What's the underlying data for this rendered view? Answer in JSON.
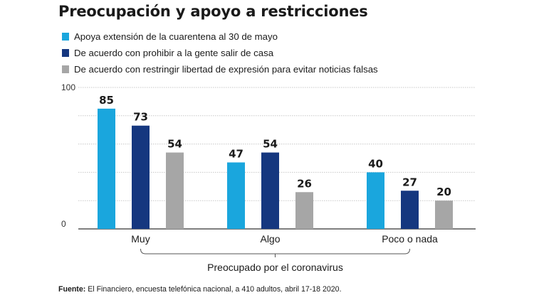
{
  "colors": {
    "series1": "#1aa6dd",
    "series2": "#15377f",
    "series3": "#a6a6a6",
    "grid": "#c8c8c8",
    "axis": "#333333"
  },
  "chart_data": {
    "type": "bar",
    "title": "Preocupación y apoyo a restricciones",
    "categories": [
      "Muy",
      "Algo",
      "Poco o nada"
    ],
    "series": [
      {
        "name": "Apoya extensión de la cuarentena al 30 de mayo",
        "values": [
          85,
          47,
          40
        ]
      },
      {
        "name": "De acuerdo con prohibir a la gente salir de casa",
        "values": [
          73,
          54,
          27
        ]
      },
      {
        "name": "De acuerdo con restringir libertad de expresión para evitar noticias falsas",
        "values": [
          54,
          26,
          20
        ]
      }
    ],
    "ylim": [
      0,
      100
    ],
    "yticks": [
      "100",
      "0"
    ],
    "xgroup_label": "Preocupado por el coronavirus",
    "legend_position": "top-left",
    "grid": true
  },
  "footer": {
    "label": "Fuente:",
    "text": " El Financiero, encuesta telefónica nacional, a 410 adultos, abril 17-18 2020."
  }
}
